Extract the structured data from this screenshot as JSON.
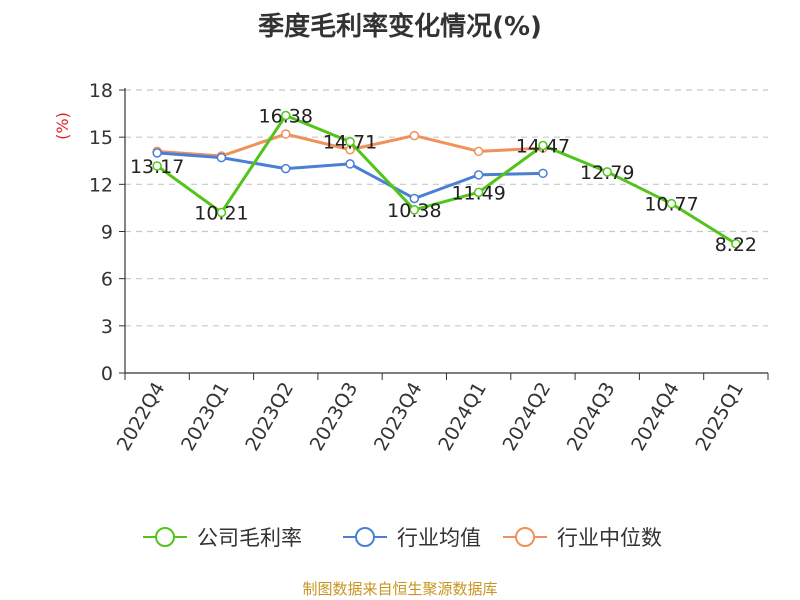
{
  "chart_data": {
    "type": "line",
    "title": "季度毛利率变化情况(%)",
    "ylabel": "(%)",
    "categories": [
      "2022Q4",
      "2023Q1",
      "2023Q2",
      "2023Q3",
      "2023Q4",
      "2024Q1",
      "2024Q2",
      "2024Q3",
      "2024Q4",
      "2025Q1"
    ],
    "ylim": [
      0,
      18
    ],
    "yticks": [
      0,
      3,
      6,
      9,
      12,
      15,
      18
    ],
    "grid": true,
    "legend_position": "bottom",
    "series": [
      {
        "name": "公司毛利率",
        "color": "#52c41a",
        "show_labels": true,
        "values": [
          13.17,
          10.21,
          16.38,
          14.71,
          10.38,
          11.49,
          14.47,
          12.79,
          10.77,
          8.22
        ]
      },
      {
        "name": "行业均值",
        "color": "#4a7fd6",
        "show_labels": false,
        "values": [
          14.0,
          13.7,
          13.0,
          13.3,
          11.1,
          12.6,
          12.7,
          null,
          null,
          null
        ]
      },
      {
        "name": "行业中位数",
        "color": "#f0905a",
        "show_labels": false,
        "values": [
          14.1,
          13.8,
          15.2,
          14.2,
          15.1,
          14.1,
          14.3,
          null,
          null,
          null
        ]
      }
    ]
  },
  "footer": {
    "source": "制图数据来自恒生聚源数据库"
  }
}
